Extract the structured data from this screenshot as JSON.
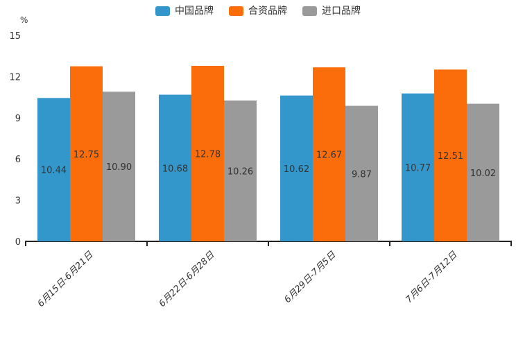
{
  "chart_data": {
    "type": "bar",
    "title": "",
    "xlabel": "",
    "ylabel": "%",
    "legend_position": "top",
    "grid": false,
    "ylim": [
      0,
      15
    ],
    "yticks": [
      0,
      3,
      6,
      9,
      12,
      15
    ],
    "categories": [
      "6月15日-6月21日",
      "6月22日-6月28日",
      "6月29日-7月5日",
      "7月6日-7月12日"
    ],
    "series": [
      {
        "name": "中国品牌",
        "color": "#3497cb",
        "values": [
          10.44,
          10.68,
          10.62,
          10.77
        ]
      },
      {
        "name": "合资品牌",
        "color": "#fb6d0a",
        "values": [
          12.75,
          12.78,
          12.67,
          12.51
        ]
      },
      {
        "name": "进口品牌",
        "color": "#9a9a9a",
        "values": [
          10.9,
          10.26,
          9.87,
          10.02
        ]
      }
    ],
    "value_labels": "inside-center-two-decimals",
    "colors": {
      "axis": "#222222",
      "text": "#333333"
    }
  }
}
